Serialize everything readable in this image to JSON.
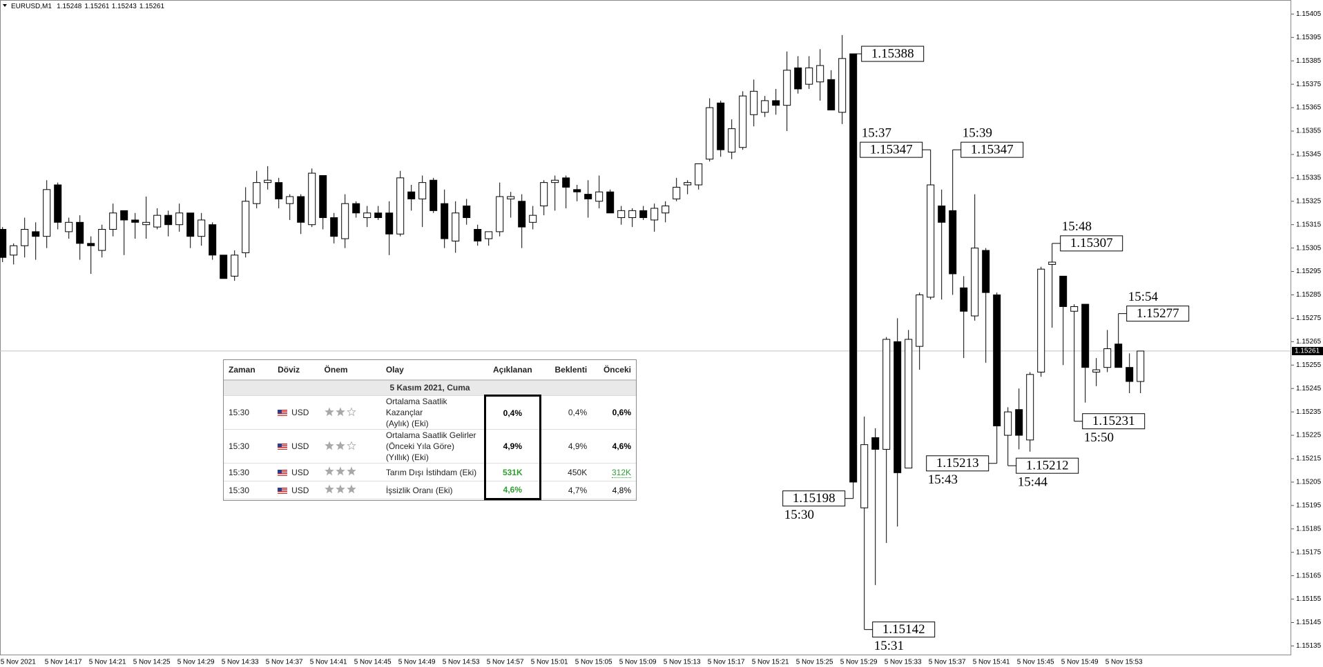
{
  "header": {
    "symbol": "EURUSD,M1",
    "values": [
      1.15248,
      1.15261,
      1.15243,
      1.15261
    ]
  },
  "chart_data": {
    "type": "candlestick",
    "categories": [
      "5 Nov 2021",
      null,
      null,
      null,
      "5 Nov 14:17",
      null,
      null,
      null,
      "5 Nov 14:21",
      null,
      null,
      null,
      "5 Nov 14:25",
      null,
      null,
      null,
      "5 Nov 14:29",
      null,
      null,
      null,
      "5 Nov 14:33",
      null,
      null,
      null,
      "5 Nov 14:37",
      null,
      null,
      null,
      "5 Nov 14:41",
      null,
      null,
      null,
      "5 Nov 14:45",
      null,
      null,
      null,
      "5 Nov 14:49",
      null,
      null,
      null,
      "5 Nov 14:53",
      null,
      null,
      null,
      "5 Nov 14:57",
      null,
      null,
      null,
      "5 Nov 15:01",
      null,
      null,
      null,
      "5 Nov 15:05",
      null,
      null,
      null,
      "5 Nov 15:09",
      null,
      null,
      null,
      "5 Nov 15:13",
      null,
      null,
      null,
      "5 Nov 15:17",
      null,
      null,
      null,
      "5 Nov 15:21",
      null,
      null,
      null,
      "5 Nov 15:25",
      null,
      null,
      null,
      "5 Nov 15:29",
      null,
      null,
      null,
      "5 Nov 15:33",
      null,
      null,
      null,
      "5 Nov 15:37",
      null,
      null,
      null,
      "5 Nov 15:41",
      null,
      null,
      null,
      "5 Nov 15:45",
      null,
      null,
      null,
      "5 Nov 15:49",
      null,
      null,
      null,
      "5 Nov 15:53",
      null,
      null,
      null
    ],
    "open": [
      1.15313,
      1.15302,
      1.15306,
      1.15312,
      1.1531,
      1.15332,
      1.15312,
      1.15316,
      1.15307,
      1.15304,
      1.15313,
      1.15321,
      1.15317,
      1.15315,
      1.15314,
      1.15319,
      1.15315,
      1.1532,
      1.1531,
      1.15315,
      1.15302,
      1.15293,
      1.15303,
      1.15324,
      1.15333,
      1.15333,
      1.15324,
      1.15327,
      1.15315,
      1.15336,
      1.15318,
      1.15309,
      1.15324,
      1.15318,
      1.1532,
      1.1532,
      1.15311,
      1.15329,
      1.15326,
      1.15334,
      1.15324,
      1.15308,
      1.15323,
      1.15313,
      1.15309,
      1.15312,
      1.15326,
      1.15325,
      1.15316,
      1.15323,
      1.15333,
      1.15335,
      1.1533,
      1.15328,
      1.15325,
      1.15329,
      1.15318,
      1.15318,
      1.15321,
      1.15317,
      1.1532,
      1.15326,
      1.15332,
      1.15332,
      1.15343,
      1.15367,
      1.15346,
      1.15348,
      1.15362,
      1.15363,
      1.15368,
      1.15366,
      1.15382,
      1.15375,
      1.15376,
      1.15377,
      1.15363,
      1.15388,
      1.15194,
      1.15224,
      1.15219,
      1.15265,
      1.15211,
      1.15263,
      1.15284,
      1.15323,
      1.15321,
      1.15288,
      1.15276,
      1.15304,
      1.15285,
      1.15225,
      1.15236,
      1.15223,
      1.15252,
      1.15298,
      1.15293,
      1.15278,
      1.15281,
      1.15252,
      1.15254,
      1.15264,
      1.15254,
      1.15248
    ],
    "high": [
      1.15314,
      1.15307,
      1.15318,
      1.15316,
      1.15334,
      1.15333,
      1.15318,
      1.15319,
      1.1531,
      1.15315,
      1.15324,
      1.15321,
      1.1532,
      1.15327,
      1.15322,
      1.15321,
      1.15324,
      1.1532,
      1.1532,
      1.15316,
      1.15302,
      1.15304,
      1.15331,
      1.15338,
      1.1534,
      1.15335,
      1.15328,
      1.15328,
      1.15339,
      1.15336,
      1.1532,
      1.15328,
      1.15325,
      1.15323,
      1.15323,
      1.15325,
      1.15338,
      1.15332,
      1.15336,
      1.15335,
      1.1533,
      1.15325,
      1.15326,
      1.15315,
      1.15312,
      1.15333,
      1.15329,
      1.15328,
      1.15323,
      1.15334,
      1.15336,
      1.15336,
      1.15332,
      1.15334,
      1.15336,
      1.1533,
      1.15323,
      1.15322,
      1.15323,
      1.15324,
      1.15325,
      1.15335,
      1.15334,
      1.15341,
      1.15369,
      1.15368,
      1.1536,
      1.15372,
      1.15377,
      1.1537,
      1.15373,
      1.15389,
      1.15387,
      1.15387,
      1.1539,
      1.15381,
      1.15396,
      1.15388,
      1.15233,
      1.15228,
      1.15267,
      1.15275,
      1.1527,
      1.15286,
      1.15347,
      1.1533,
      1.15347,
      1.15293,
      1.15328,
      1.15305,
      1.15286,
      1.15237,
      1.15245,
      1.15252,
      1.15297,
      1.15307,
      1.15293,
      1.15281,
      1.15281,
      1.15258,
      1.1527,
      1.15277,
      1.1526,
      1.15261
    ],
    "low": [
      1.15299,
      1.15298,
      1.15301,
      1.153,
      1.15305,
      1.15313,
      1.15309,
      1.153,
      1.15294,
      1.15301,
      1.1531,
      1.15302,
      1.15309,
      1.15309,
      1.15313,
      1.1531,
      1.15312,
      1.15305,
      1.15306,
      1.153,
      1.15292,
      1.15291,
      1.15301,
      1.15322,
      1.1533,
      1.15322,
      1.15317,
      1.15311,
      1.15314,
      1.15313,
      1.15307,
      1.15305,
      1.15318,
      1.15314,
      1.15317,
      1.15302,
      1.1531,
      1.15321,
      1.15314,
      1.1532,
      1.15305,
      1.15303,
      1.15315,
      1.15306,
      1.15306,
      1.1531,
      1.15318,
      1.15305,
      1.15313,
      1.15319,
      1.15321,
      1.15322,
      1.15325,
      1.15318,
      1.15322,
      1.1532,
      1.15315,
      1.15314,
      1.15317,
      1.15312,
      1.15316,
      1.15325,
      1.15328,
      1.1533,
      1.15342,
      1.15344,
      1.15343,
      1.15347,
      1.15357,
      1.15361,
      1.15362,
      1.15355,
      1.15371,
      1.15373,
      1.15368,
      1.15364,
      1.15358,
      1.15198,
      1.15142,
      1.15161,
      1.15179,
      1.15186,
      1.15211,
      1.15253,
      1.15283,
      1.15283,
      1.15285,
      1.15258,
      1.15274,
      1.15256,
      1.15213,
      1.15212,
      1.15219,
      1.15218,
      1.1525,
      1.15271,
      1.15255,
      1.15231,
      1.15239,
      1.15246,
      1.15252,
      1.15254,
      1.15243,
      1.15243
    ],
    "close": [
      1.15301,
      1.15306,
      1.15313,
      1.1531,
      1.1533,
      1.15316,
      1.15316,
      1.15307,
      1.15306,
      1.15313,
      1.1532,
      1.15317,
      1.15316,
      1.15316,
      1.15319,
      1.15315,
      1.1532,
      1.1531,
      1.15317,
      1.15302,
      1.15292,
      1.15302,
      1.15325,
      1.15333,
      1.15334,
      1.15326,
      1.15327,
      1.15316,
      1.15337,
      1.15318,
      1.1531,
      1.15324,
      1.1532,
      1.1532,
      1.15318,
      1.15311,
      1.15335,
      1.15326,
      1.15333,
      1.15321,
      1.15309,
      1.1532,
      1.15318,
      1.15308,
      1.15312,
      1.15327,
      1.15327,
      1.15314,
      1.15319,
      1.15333,
      1.15334,
      1.15331,
      1.15329,
      1.15326,
      1.15329,
      1.1532,
      1.15321,
      1.15321,
      1.15318,
      1.15322,
      1.15323,
      1.15331,
      1.15333,
      1.15341,
      1.15365,
      1.15347,
      1.15356,
      1.1537,
      1.15372,
      1.15368,
      1.15366,
      1.15381,
      1.15373,
      1.15382,
      1.15383,
      1.15364,
      1.15386,
      1.15205,
      1.15221,
      1.15219,
      1.15266,
      1.15209,
      1.15266,
      1.15285,
      1.15332,
      1.15316,
      1.15294,
      1.15278,
      1.15305,
      1.15286,
      1.15229,
      1.15235,
      1.15225,
      1.15251,
      1.15296,
      1.15299,
      1.1528,
      1.1528,
      1.15254,
      1.15253,
      1.15262,
      1.15254,
      1.15248,
      1.15261
    ],
    "up_color": "#ffffff",
    "down_color": "#000000",
    "ylim": [
      1.15131,
      1.15411
    ],
    "yticks": [
      1.15135,
      1.15145,
      1.15155,
      1.15165,
      1.15175,
      1.15185,
      1.15195,
      1.15205,
      1.15215,
      1.15225,
      1.15235,
      1.15245,
      1.15255,
      1.15265,
      1.15275,
      1.15285,
      1.15295,
      1.15305,
      1.15315,
      1.15325,
      1.15335,
      1.15345,
      1.15355,
      1.15365,
      1.15375,
      1.15385,
      1.15395,
      1.15405
    ],
    "current_price": 1.15261,
    "annotations": [
      {
        "price": 1.15388
      },
      {
        "time": "15:30",
        "price": 1.15198
      },
      {
        "time": "15:31",
        "price": 1.15142
      },
      {
        "time": "15:37",
        "price": 1.15347
      },
      {
        "time": "15:39",
        "price": 1.15347
      },
      {
        "time": "15:43",
        "price": 1.15213
      },
      {
        "time": "15:44",
        "price": 1.15212
      },
      {
        "time": "15:48",
        "price": 1.15307
      },
      {
        "time": "15:50",
        "price": 1.15231
      },
      {
        "time": "15:54",
        "price": 1.15277
      }
    ]
  },
  "calendar": {
    "headers": [
      "Zaman",
      "Döviz",
      "Önem",
      "Olay",
      "Açıklanan",
      "Beklenti",
      "Önceki"
    ],
    "date": "5 Kasım 2021, Cuma",
    "rows": [
      {
        "time": "15:30",
        "currency": "USD",
        "importance": 2,
        "event": [
          "Ortalama Saatlik Kazançlar",
          "(Aylık) (Eki)"
        ],
        "actual": "0,4%",
        "actual_color": "#000000",
        "forecast": "0,4%",
        "previous": "0,6%",
        "previous_color": "#000000"
      },
      {
        "time": "15:30",
        "currency": "USD",
        "importance": 2,
        "event": [
          "Ortalama Saatlik Gelirler",
          "(Önceki Yıla Göre) (Yıllık) (Eki)"
        ],
        "actual": "4,9%",
        "actual_color": "#000000",
        "forecast": "4,9%",
        "previous": "4,6%",
        "previous_color": "#000000"
      },
      {
        "time": "15:30",
        "currency": "USD",
        "importance": 3,
        "event": [
          "Tarım Dışı İstihdam (Eki)"
        ],
        "actual": "531K",
        "actual_color": "#2e9e2e",
        "forecast": "450K",
        "previous": "312K",
        "previous_color": "#2e9e2e"
      },
      {
        "time": "15:30",
        "currency": "USD",
        "importance": 3,
        "event": [
          "İşsizlik Oranı (Eki)"
        ],
        "actual": "4,6%",
        "actual_color": "#2e9e2e",
        "forecast": "4,7%",
        "previous": "4,8%",
        "previous_color": "#000000"
      }
    ]
  }
}
